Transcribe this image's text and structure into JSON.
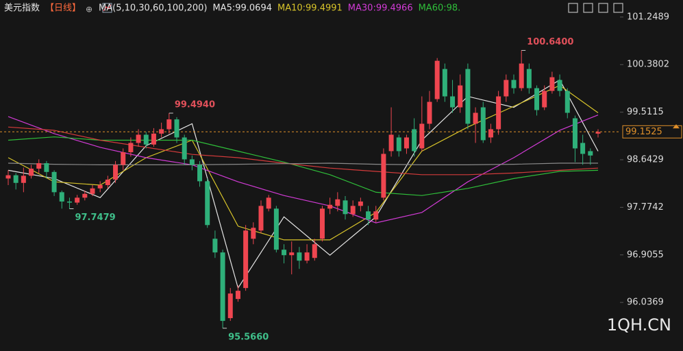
{
  "chart_data": {
    "type": "candlestick",
    "legend": [
      {
        "text": "美元指数",
        "color": "#e6e6e6"
      },
      {
        "text": "【日线】",
        "color": "#ff6a3d"
      },
      {
        "text": "MA(5,10,30,60,100,200)",
        "color": "#e6e6e6"
      },
      {
        "text": "MA5:99.0694",
        "color": "#e6e6e6"
      },
      {
        "text": "MA10:99.4991",
        "color": "#d8c42a"
      },
      {
        "text": "MA30:99.4966",
        "color": "#d23bd6"
      },
      {
        "text": "MA60:98.",
        "color": "#2fbf3a"
      }
    ],
    "up_color": "#ef4650",
    "down_color": "#2fb07a",
    "ylim": [
      95.15,
      101.56
    ],
    "yticks": [
      101.2489,
      100.3802,
      99.5115,
      98.6429,
      97.7742,
      96.9055,
      96.0369
    ],
    "candles": {
      "open": [
        98.3,
        98.36,
        98.22,
        98.35,
        98.48,
        98.58,
        98.42,
        98.05,
        97.88,
        97.86,
        97.95,
        98.02,
        98.12,
        98.18,
        98.28,
        98.55,
        98.78,
        98.95,
        99.1,
        98.92,
        99.12,
        99.2,
        99.38,
        99.05,
        98.65,
        98.55,
        98.25,
        97.2,
        96.95,
        95.75,
        96.1,
        96.3,
        97.2,
        97.35,
        97.75,
        97.75,
        97.0,
        96.9,
        96.95,
        96.8,
        96.85,
        97.2,
        97.75,
        97.8,
        97.9,
        97.65,
        97.8,
        97.7,
        97.55,
        97.95,
        98.8,
        99.05,
        98.85,
        99.2,
        98.85,
        99.3,
        99.75,
        100.3,
        99.8,
        99.6,
        100.3,
        99.3,
        99.6,
        99.05,
        99.2,
        99.8,
        100.1,
        99.95,
        100.3,
        99.95,
        99.6,
        99.9,
        100.1,
        99.9,
        99.4,
        98.95,
        98.8,
        99.12
      ],
      "high": [
        98.45,
        98.4,
        98.5,
        98.55,
        98.65,
        98.62,
        98.45,
        98.08,
        97.95,
        98.0,
        98.08,
        98.18,
        98.25,
        98.35,
        98.62,
        98.85,
        99.05,
        99.2,
        99.15,
        99.22,
        99.32,
        99.494,
        99.42,
        99.1,
        98.72,
        98.62,
        98.3,
        97.35,
        97.0,
        96.3,
        96.35,
        97.45,
        97.5,
        97.9,
        98.0,
        97.8,
        97.1,
        97.15,
        97.05,
        97.1,
        97.2,
        97.8,
        97.95,
        98.05,
        97.98,
        97.9,
        97.95,
        97.8,
        97.8,
        98.85,
        99.6,
        99.1,
        99.1,
        99.4,
        99.8,
        99.9,
        100.5,
        100.4,
        100.1,
        100.2,
        100.4,
        99.6,
        99.7,
        99.3,
        99.9,
        100.2,
        100.2,
        100.64,
        100.4,
        100.0,
        100.0,
        100.25,
        100.2,
        99.95,
        99.45,
        99.1,
        98.85,
        99.2
      ],
      "low": [
        98.18,
        98.1,
        98.05,
        98.3,
        98.4,
        98.3,
        97.98,
        97.75,
        97.7479,
        97.82,
        97.9,
        97.98,
        98.05,
        98.12,
        98.22,
        98.45,
        98.7,
        98.88,
        98.85,
        98.88,
        99.05,
        99.12,
        98.95,
        98.55,
        98.45,
        98.15,
        97.4,
        96.85,
        95.566,
        95.7,
        96.05,
        96.25,
        97.1,
        97.3,
        97.7,
        96.95,
        96.75,
        96.55,
        96.65,
        96.75,
        96.8,
        97.15,
        97.65,
        97.7,
        97.55,
        97.6,
        97.7,
        97.45,
        97.5,
        97.9,
        98.7,
        98.7,
        98.75,
        98.7,
        98.8,
        99.2,
        99.7,
        99.7,
        99.5,
        99.5,
        99.2,
        98.95,
        98.95,
        98.95,
        99.1,
        99.7,
        99.85,
        99.9,
        99.85,
        99.45,
        99.55,
        99.85,
        99.8,
        99.4,
        98.6,
        98.55,
        98.55,
        99.05
      ],
      "close": [
        98.36,
        98.22,
        98.35,
        98.48,
        98.58,
        98.42,
        98.05,
        97.88,
        97.86,
        97.95,
        98.02,
        98.12,
        98.18,
        98.28,
        98.55,
        98.78,
        98.95,
        99.1,
        98.92,
        99.12,
        99.2,
        99.38,
        99.05,
        98.65,
        98.55,
        98.25,
        97.45,
        96.95,
        95.7,
        96.2,
        96.25,
        97.35,
        97.4,
        97.8,
        97.95,
        97.0,
        96.9,
        96.95,
        96.8,
        96.95,
        97.1,
        97.75,
        97.82,
        97.92,
        97.65,
        97.8,
        97.88,
        97.55,
        97.7,
        98.75,
        99.1,
        98.8,
        99.05,
        98.8,
        99.3,
        99.7,
        100.45,
        99.8,
        99.6,
        100.0,
        99.3,
        99.5,
        99.0,
        99.2,
        99.8,
        100.1,
        99.95,
        100.4,
        99.95,
        99.55,
        99.9,
        100.15,
        99.9,
        99.5,
        98.85,
        98.75,
        98.72,
        99.15
      ]
    },
    "annotations": [
      {
        "value": 99.494,
        "label": "99.4940"
      },
      {
        "value": 100.64,
        "label": "100.6400"
      },
      {
        "value": 97.7479,
        "label": "97.7479"
      },
      {
        "value": 95.566,
        "label": "95.5660"
      }
    ],
    "last_price": 99.1525,
    "ma_x": [
      0,
      6,
      12,
      18,
      24,
      30,
      36,
      42,
      48,
      54,
      60,
      66,
      72,
      77
    ],
    "ma_lines": [
      {
        "color": "#e6e6e6",
        "values": [
          98.45,
          98.3,
          97.95,
          98.9,
          99.3,
          96.3,
          97.6,
          96.9,
          97.6,
          99.0,
          99.8,
          99.6,
          100.1,
          98.8
        ]
      },
      {
        "color": "#d8c42a",
        "values": [
          98.68,
          98.24,
          98.18,
          98.68,
          99.0,
          97.43,
          97.18,
          97.18,
          97.68,
          98.8,
          99.24,
          99.62,
          100.0,
          99.5
        ]
      },
      {
        "color": "#d23bd6",
        "values": [
          99.43,
          99.12,
          98.87,
          98.68,
          98.55,
          98.24,
          97.99,
          97.8,
          97.49,
          97.68,
          98.24,
          98.68,
          99.18,
          99.46
        ]
      },
      {
        "color": "#2fbf3a",
        "values": [
          99.0,
          99.06,
          99.0,
          99.0,
          99.0,
          98.8,
          98.6,
          98.37,
          98.05,
          97.99,
          98.12,
          98.3,
          98.43,
          98.45
        ]
      },
      {
        "color": "#d43b3b",
        "values": [
          99.24,
          99.18,
          99.0,
          98.87,
          98.74,
          98.68,
          98.58,
          98.49,
          98.43,
          98.37,
          98.37,
          98.4,
          98.45,
          98.49
        ]
      },
      {
        "color": "#8a8a8a",
        "values": [
          98.58,
          98.56,
          98.55,
          98.55,
          98.55,
          98.56,
          98.57,
          98.58,
          98.56,
          98.55,
          98.55,
          98.56,
          98.58,
          98.58
        ]
      }
    ],
    "watermark": "1QH.CN"
  }
}
